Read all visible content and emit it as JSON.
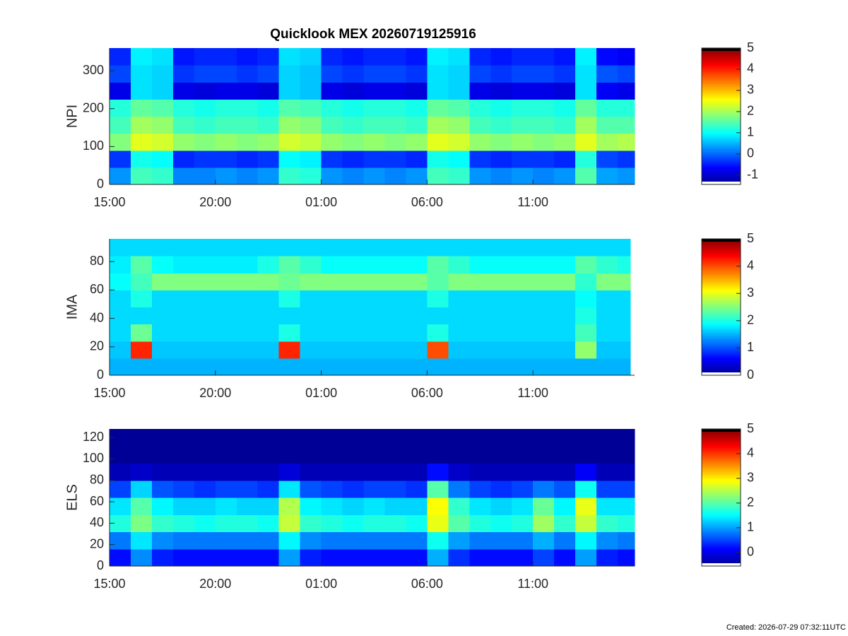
{
  "colormap": [
    "#00008f",
    "#0000ff",
    "#0080ff",
    "#00ffff",
    "#80ff80",
    "#ffff00",
    "#ff8000",
    "#ff0000",
    "#800000"
  ],
  "under_color": "#ffffff",
  "over_color": "#000000",
  "footer": "Created: 2026-07-29 07:32:11UTC",
  "chart_data": [
    {
      "type": "heatmap",
      "title": "Quicklook MEX 20260719125916",
      "ylabel": "NPI",
      "xlim": [
        15,
        39.8
      ],
      "xticks": [
        {
          "value": 15,
          "label": "15:00"
        },
        {
          "value": 20,
          "label": "20:00"
        },
        {
          "value": 25,
          "label": "01:00"
        },
        {
          "value": 30,
          "label": "06:00"
        },
        {
          "value": 35,
          "label": "11:00"
        }
      ],
      "ylim": [
        0,
        360
      ],
      "yticks": [
        0,
        100,
        200,
        300
      ],
      "xbins": [
        15,
        16,
        17,
        18,
        19,
        20,
        21,
        22,
        23,
        24,
        25,
        26,
        27,
        28,
        29,
        30,
        31,
        32,
        33,
        34,
        35,
        36,
        37,
        38,
        39,
        39.8
      ],
      "ybins": [
        0,
        45,
        90,
        135,
        180,
        225,
        270,
        315,
        360
      ],
      "clim": [
        -1.44,
        5
      ],
      "cticks": [
        -1,
        0,
        1,
        2,
        3,
        4,
        5
      ],
      "z": [
        [
          0.3,
          1.4,
          1.3,
          0.2,
          0.2,
          0.3,
          0.2,
          0.3,
          1.3,
          1.2,
          0.3,
          0.2,
          0.3,
          0.2,
          0.3,
          1.4,
          1.3,
          0.3,
          0.2,
          0.3,
          0.2,
          0.3,
          1.5,
          0.4,
          0.3
        ],
        [
          -0.3,
          1.1,
          1.0,
          -0.4,
          -0.3,
          -0.3,
          -0.4,
          -0.3,
          1.0,
          0.9,
          -0.3,
          -0.4,
          -0.3,
          -0.3,
          -0.4,
          1.1,
          1.0,
          -0.3,
          -0.4,
          -0.3,
          -0.3,
          -0.4,
          1.2,
          -0.2,
          -0.3
        ],
        [
          1.8,
          2.4,
          2.3,
          1.9,
          1.8,
          1.9,
          1.8,
          1.9,
          2.3,
          2.2,
          1.9,
          1.8,
          1.9,
          1.8,
          1.9,
          2.4,
          2.3,
          1.9,
          1.8,
          1.9,
          1.8,
          1.9,
          2.4,
          2.0,
          2.1
        ],
        [
          1.4,
          2.0,
          1.9,
          1.4,
          1.3,
          1.4,
          1.4,
          1.3,
          1.9,
          1.8,
          1.4,
          1.3,
          1.4,
          1.4,
          1.3,
          2.0,
          1.9,
          1.4,
          1.3,
          1.4,
          1.4,
          1.3,
          2.0,
          1.5,
          1.5
        ],
        [
          1.2,
          1.6,
          1.5,
          1.2,
          1.1,
          1.2,
          1.2,
          1.1,
          1.5,
          1.4,
          1.2,
          1.1,
          1.2,
          1.2,
          1.1,
          1.6,
          1.5,
          1.2,
          1.1,
          1.2,
          1.2,
          1.1,
          1.6,
          1.2,
          1.2
        ],
        [
          -0.8,
          0.8,
          0.7,
          -0.8,
          -0.9,
          -0.8,
          -0.8,
          -0.9,
          0.7,
          0.6,
          -0.8,
          -0.9,
          -0.8,
          -0.8,
          -0.9,
          0.8,
          0.7,
          -0.8,
          -0.9,
          -0.8,
          -0.8,
          -0.9,
          0.8,
          -0.7,
          -0.8
        ],
        [
          -0.2,
          0.8,
          0.7,
          -0.3,
          -0.2,
          -0.2,
          -0.3,
          -0.2,
          0.7,
          0.6,
          -0.2,
          -0.3,
          -0.2,
          -0.2,
          -0.3,
          0.8,
          0.7,
          -0.2,
          -0.3,
          -0.2,
          -0.2,
          -0.3,
          0.8,
          -0.1,
          -0.2
        ],
        [
          -0.4,
          0.9,
          0.8,
          -0.5,
          -0.4,
          -0.4,
          -0.5,
          -0.4,
          0.8,
          0.7,
          -0.4,
          -0.5,
          -0.4,
          -0.4,
          -0.5,
          0.9,
          0.8,
          -0.4,
          -0.5,
          -0.4,
          -0.4,
          -0.5,
          0.9,
          -0.6,
          -0.7
        ]
      ]
    },
    {
      "type": "heatmap",
      "ylabel": "IMA",
      "xlim": [
        15,
        39.8
      ],
      "xticks": [
        {
          "value": 15,
          "label": "15:00"
        },
        {
          "value": 20,
          "label": "20:00"
        },
        {
          "value": 25,
          "label": "01:00"
        },
        {
          "value": 30,
          "label": "06:00"
        },
        {
          "value": 35,
          "label": "11:00"
        }
      ],
      "ylim": [
        0,
        96
      ],
      "yticks": [
        0,
        20,
        40,
        60,
        80
      ],
      "xbins": [
        15,
        16,
        17,
        18,
        19,
        20,
        21,
        22,
        23,
        24,
        25,
        26,
        27,
        28,
        29,
        30,
        31,
        32,
        33,
        34,
        35,
        36,
        37,
        38,
        39,
        39.6
      ],
      "ybins": [
        0,
        12,
        24,
        36,
        48,
        60,
        72,
        84,
        96
      ],
      "clim": [
        0,
        5
      ],
      "cticks": [
        0,
        1,
        2,
        3,
        4,
        5
      ],
      "z": [
        [
          1.5,
          1.5,
          1.5,
          1.5,
          1.5,
          1.5,
          1.5,
          1.5,
          1.5,
          1.5,
          1.5,
          1.5,
          1.5,
          1.5,
          1.5,
          1.5,
          1.5,
          1.5,
          1.5,
          1.5,
          1.5,
          1.5,
          1.5,
          1.5,
          1.5
        ],
        [
          1.6,
          4.2,
          1.6,
          1.6,
          1.6,
          1.6,
          1.6,
          1.6,
          4.2,
          1.6,
          1.6,
          1.6,
          1.6,
          1.6,
          1.6,
          4.0,
          1.6,
          1.6,
          1.6,
          1.6,
          1.6,
          1.6,
          2.6,
          1.6,
          1.6
        ],
        [
          1.7,
          2.4,
          1.7,
          1.7,
          1.7,
          1.7,
          1.7,
          1.7,
          2.0,
          1.7,
          1.7,
          1.7,
          1.7,
          1.7,
          1.7,
          2.0,
          1.7,
          1.7,
          1.7,
          1.7,
          1.7,
          1.7,
          2.2,
          1.7,
          1.7
        ],
        [
          1.7,
          1.7,
          1.7,
          1.7,
          1.7,
          1.7,
          1.7,
          1.7,
          1.7,
          1.7,
          1.7,
          1.7,
          1.7,
          1.7,
          1.7,
          1.7,
          1.7,
          1.7,
          1.7,
          1.7,
          1.7,
          1.7,
          2.0,
          1.7,
          1.7
        ],
        [
          1.7,
          2.0,
          1.7,
          1.7,
          1.7,
          1.7,
          1.7,
          1.7,
          2.0,
          1.7,
          1.7,
          1.7,
          1.7,
          1.7,
          1.7,
          2.0,
          1.7,
          1.7,
          1.7,
          1.7,
          1.7,
          1.7,
          1.9,
          1.7,
          1.7
        ],
        [
          1.9,
          2.2,
          2.5,
          2.5,
          2.5,
          2.5,
          2.5,
          2.5,
          2.4,
          2.5,
          2.5,
          2.5,
          2.5,
          2.5,
          2.5,
          2.3,
          2.5,
          2.5,
          2.5,
          2.5,
          2.5,
          2.5,
          2.1,
          2.5,
          2.5
        ],
        [
          1.8,
          2.3,
          1.9,
          1.8,
          1.8,
          1.8,
          1.8,
          2.0,
          2.3,
          2.1,
          1.9,
          1.9,
          1.9,
          1.9,
          1.9,
          2.3,
          2.1,
          1.9,
          1.9,
          1.9,
          1.9,
          1.9,
          2.3,
          2.1,
          2.0
        ],
        [
          1.7,
          1.7,
          1.7,
          1.7,
          1.7,
          1.7,
          1.7,
          1.7,
          1.7,
          1.7,
          1.7,
          1.7,
          1.7,
          1.7,
          1.7,
          1.7,
          1.7,
          1.7,
          1.7,
          1.7,
          1.7,
          1.7,
          1.7,
          1.7,
          1.7
        ]
      ]
    },
    {
      "type": "heatmap",
      "ylabel": "ELS",
      "xlim": [
        15,
        39.8
      ],
      "xticks": [
        {
          "value": 15,
          "label": "15:00"
        },
        {
          "value": 20,
          "label": "20:00"
        },
        {
          "value": 25,
          "label": "01:00"
        },
        {
          "value": 30,
          "label": "06:00"
        },
        {
          "value": 35,
          "label": "11:00"
        }
      ],
      "ylim": [
        0,
        128
      ],
      "yticks": [
        0,
        20,
        40,
        60,
        80,
        100,
        120
      ],
      "xbins": [
        15,
        16,
        17,
        18,
        19,
        20,
        21,
        22,
        23,
        24,
        25,
        26,
        27,
        28,
        29,
        30,
        31,
        32,
        33,
        34,
        35,
        36,
        37,
        38,
        39,
        39.8
      ],
      "ybins": [
        0,
        16,
        32,
        48,
        64,
        80,
        96,
        112,
        128
      ],
      "clim": [
        -0.55,
        5
      ],
      "cticks": [
        0,
        1,
        2,
        3,
        4,
        5
      ],
      "z": [
        [
          0.2,
          0.9,
          0.3,
          0.2,
          0.2,
          0.2,
          0.2,
          0.2,
          1.0,
          0.3,
          0.2,
          0.2,
          0.2,
          0.2,
          0.2,
          1.1,
          0.4,
          0.2,
          0.2,
          0.2,
          0.5,
          0.2,
          1.0,
          0.3,
          0.2
        ],
        [
          0.8,
          1.4,
          0.9,
          0.8,
          0.8,
          0.8,
          0.8,
          0.8,
          1.5,
          0.9,
          0.8,
          0.8,
          0.8,
          0.8,
          0.8,
          1.6,
          1.0,
          0.8,
          0.8,
          0.8,
          1.1,
          0.8,
          1.5,
          0.9,
          0.8
        ],
        [
          1.7,
          2.2,
          1.8,
          1.7,
          1.6,
          1.7,
          1.7,
          1.6,
          2.6,
          1.8,
          1.7,
          1.6,
          1.7,
          1.7,
          1.6,
          2.8,
          2.0,
          1.7,
          1.6,
          1.7,
          2.4,
          1.8,
          2.6,
          1.8,
          1.7
        ],
        [
          1.4,
          2.0,
          1.5,
          1.3,
          1.3,
          1.4,
          1.3,
          1.3,
          2.5,
          1.5,
          1.4,
          1.3,
          1.4,
          1.3,
          1.3,
          2.9,
          1.8,
          1.4,
          1.3,
          1.4,
          2.1,
          1.5,
          2.8,
          1.4,
          1.4
        ],
        [
          0.5,
          1.3,
          0.6,
          0.5,
          0.4,
          0.5,
          0.5,
          0.4,
          1.4,
          0.6,
          0.5,
          0.4,
          0.5,
          0.5,
          0.4,
          2.0,
          0.8,
          0.5,
          0.4,
          0.5,
          0.8,
          0.6,
          1.6,
          0.5,
          0.5
        ],
        [
          -0.3,
          -0.2,
          -0.3,
          -0.3,
          -0.3,
          -0.3,
          -0.3,
          -0.3,
          -0.1,
          -0.3,
          -0.3,
          -0.3,
          -0.3,
          -0.3,
          -0.3,
          0.2,
          -0.2,
          -0.3,
          -0.3,
          -0.3,
          -0.3,
          -0.3,
          0.1,
          -0.3,
          -0.3
        ],
        [
          -0.5,
          -0.5,
          -0.5,
          -0.5,
          -0.5,
          -0.5,
          -0.5,
          -0.5,
          -0.5,
          -0.5,
          -0.5,
          -0.5,
          -0.5,
          -0.5,
          -0.5,
          -0.5,
          -0.5,
          -0.5,
          -0.5,
          -0.5,
          -0.5,
          -0.5,
          -0.5,
          -0.5,
          -0.5
        ],
        [
          -0.5,
          -0.5,
          -0.5,
          -0.5,
          -0.5,
          -0.5,
          -0.5,
          -0.5,
          -0.5,
          -0.5,
          -0.5,
          -0.5,
          -0.5,
          -0.5,
          -0.5,
          -0.5,
          -0.5,
          -0.5,
          -0.5,
          -0.5,
          -0.5,
          -0.5,
          -0.5,
          -0.5,
          -0.5
        ]
      ]
    }
  ]
}
